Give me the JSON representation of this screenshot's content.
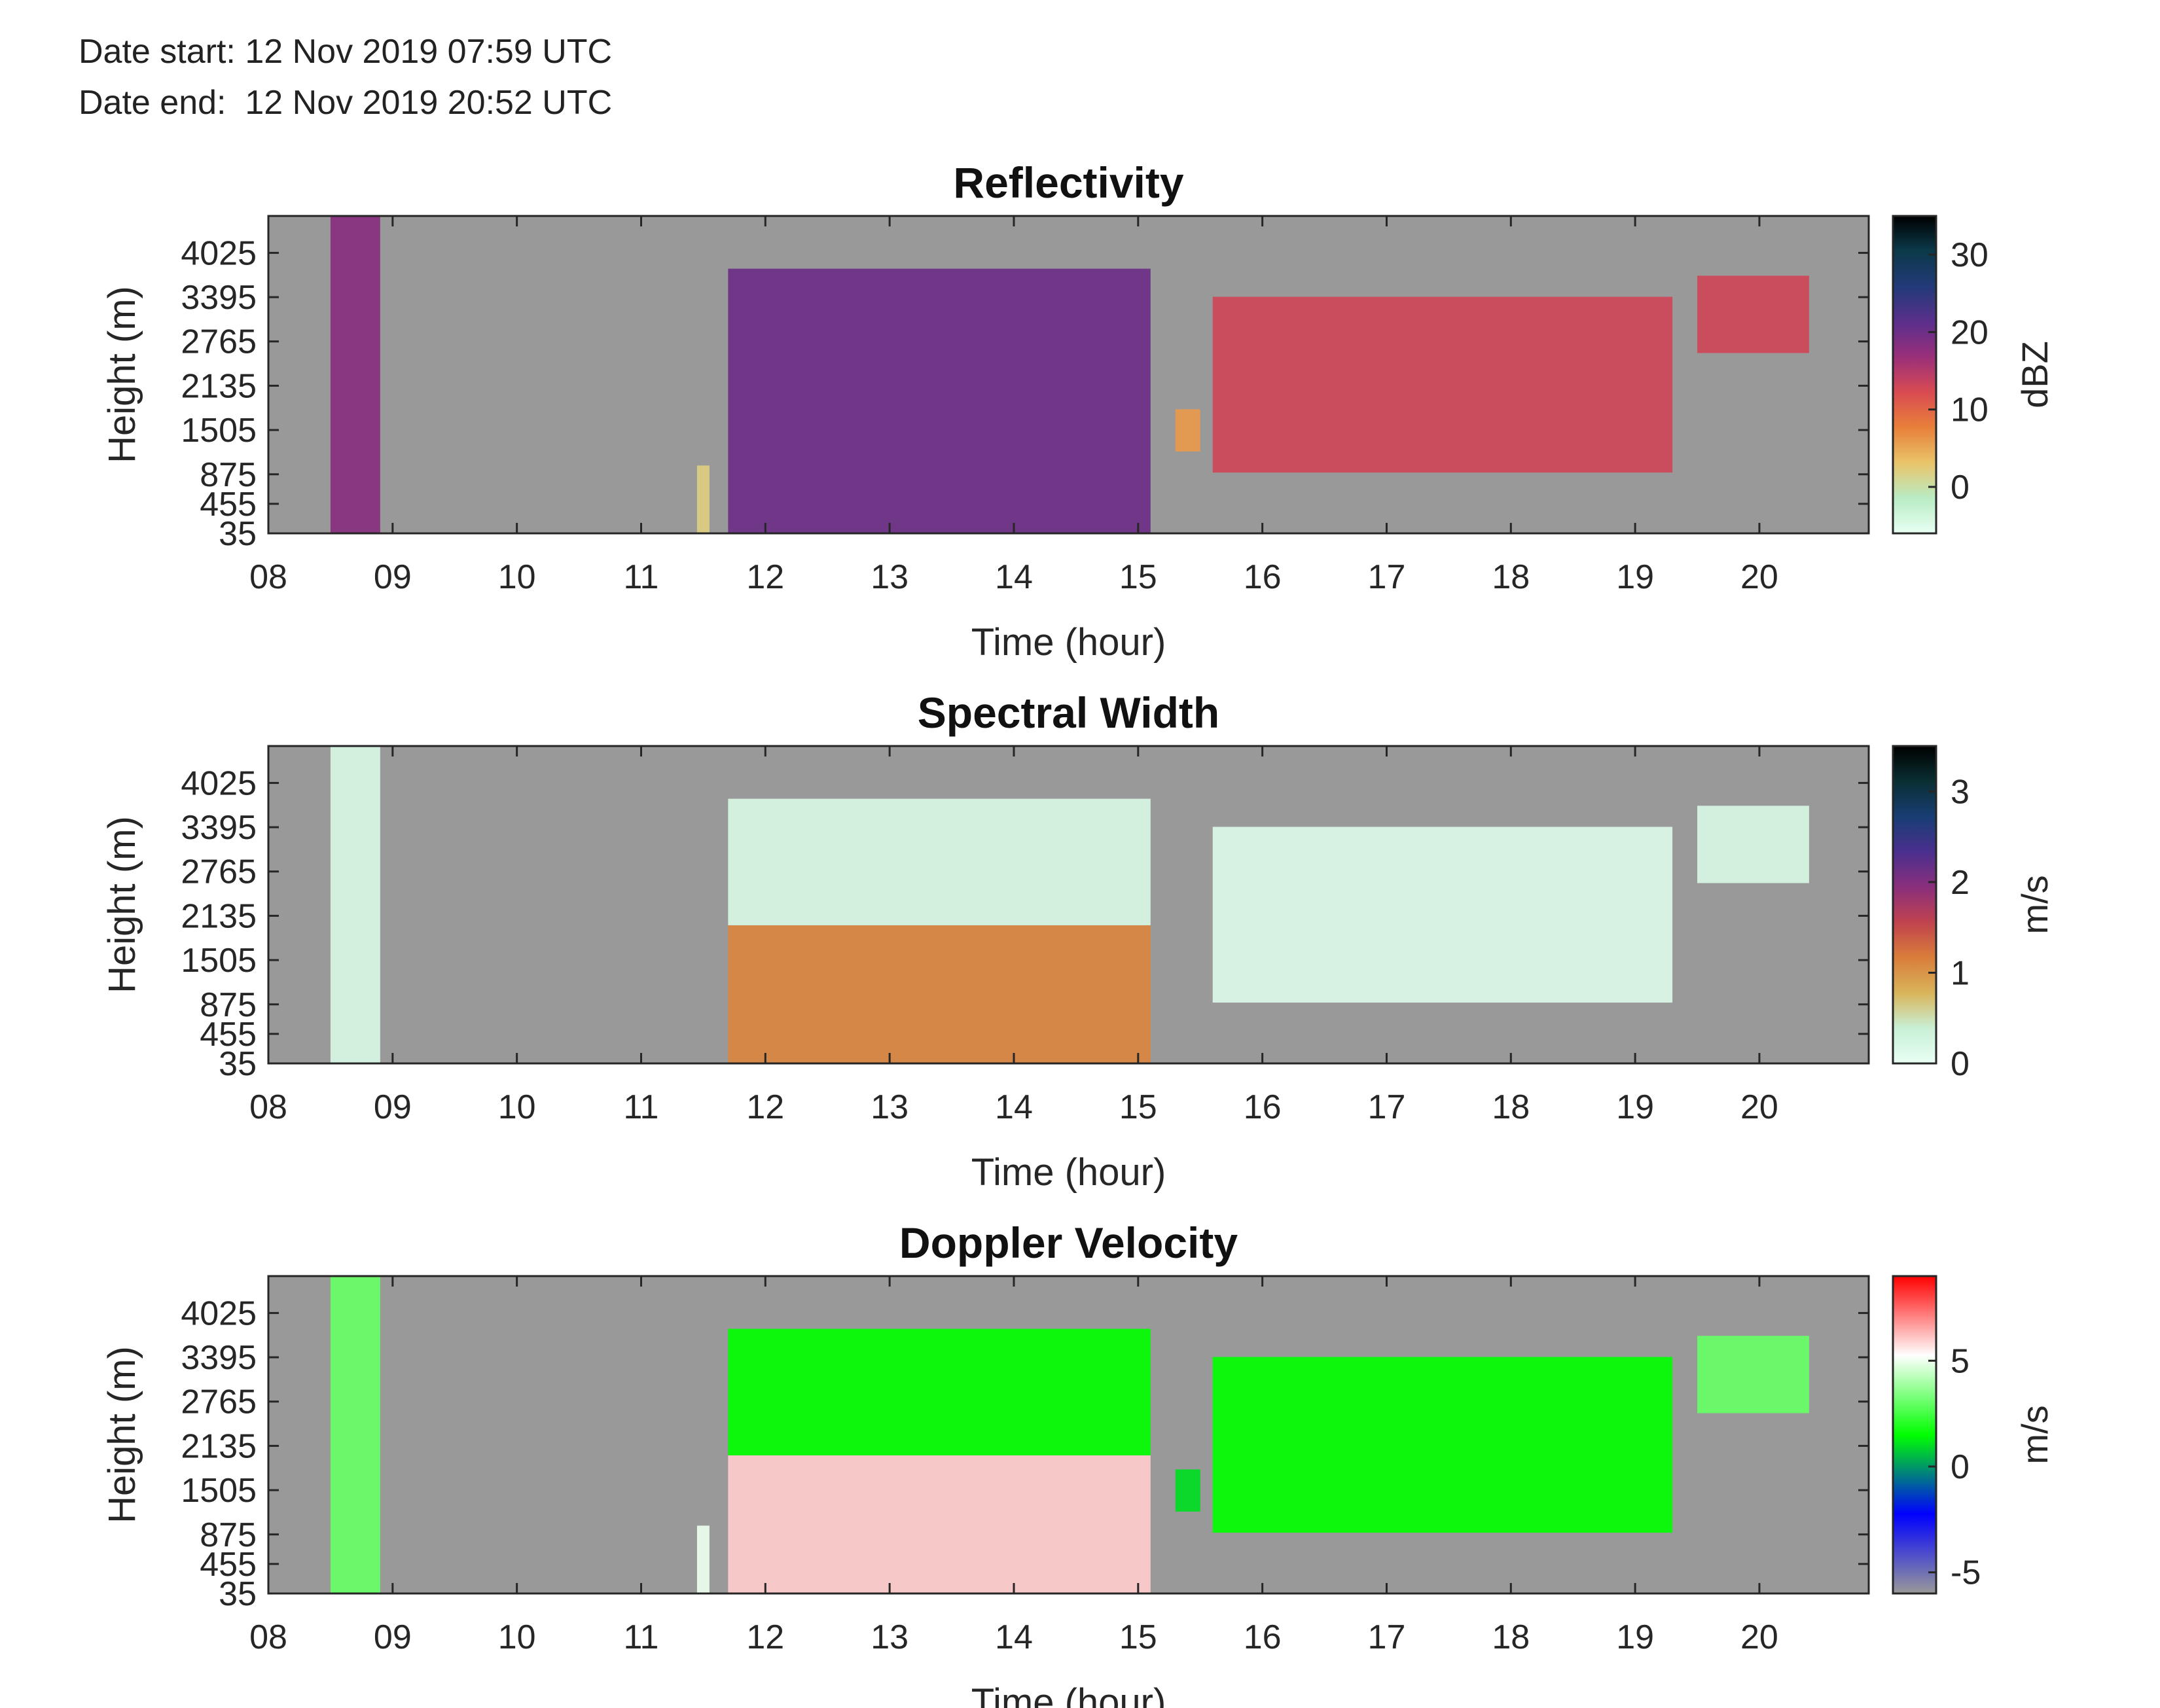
{
  "header": {
    "date_start": "Date start: 12 Nov 2019 07:59 UTC",
    "date_end": "Date end:  12 Nov 2019 20:52 UTC"
  },
  "colors": {
    "background": "#999999",
    "reflectivity_scale": [
      "#e8fff4",
      "#b9ecc4",
      "#e9c46a",
      "#e8803a",
      "#d94b52",
      "#9a2f7a",
      "#5a2f8c",
      "#223a78",
      "#0b3a4a",
      "#000000"
    ],
    "spectral_width_scale": [
      "#e8fff4",
      "#c9f0d6",
      "#d9b45a",
      "#d97d3a",
      "#c0434e",
      "#8a2f7c",
      "#4a2f8e",
      "#183e74",
      "#0a2f33",
      "#000000"
    ],
    "doppler_scale": [
      "#999999",
      "#0000ff",
      "#00ff00",
      "#ffffff",
      "#ff0000"
    ]
  },
  "chart_data": [
    {
      "type": "heatmap",
      "title": "Reflectivity",
      "xlabel": "Time (hour)",
      "ylabel": "Height (m)",
      "x_ticks": [
        "08",
        "09",
        "10",
        "11",
        "12",
        "13",
        "14",
        "15",
        "16",
        "17",
        "18",
        "19",
        "20"
      ],
      "y_ticks": [
        "35",
        "455",
        "875",
        "1505",
        "2135",
        "2765",
        "3395",
        "4025"
      ],
      "y_tick_values": [
        35,
        455,
        875,
        1505,
        2135,
        2765,
        3395,
        4025
      ],
      "xlim": [
        8.0,
        20.88
      ],
      "ylim": [
        35,
        4550
      ],
      "colorbar": {
        "label": "dBZ",
        "ticks": [
          "0",
          "10",
          "20",
          "30"
        ],
        "tick_values": [
          0,
          10,
          20,
          30
        ],
        "range": [
          -6,
          35
        ]
      },
      "echo_segments": [
        {
          "start": 8.5,
          "end": 8.9,
          "base": 35,
          "top": 4550,
          "value": 18
        },
        {
          "start": 11.45,
          "end": 11.55,
          "base": 35,
          "top": 1000,
          "value": 2
        },
        {
          "start": 11.7,
          "end": 15.1,
          "base": 35,
          "top": 3800,
          "value": 20
        },
        {
          "start": 15.3,
          "end": 15.5,
          "base": 1200,
          "top": 1800,
          "value": 6
        },
        {
          "start": 15.6,
          "end": 19.3,
          "base": 900,
          "top": 3400,
          "value": 13
        },
        {
          "start": 19.5,
          "end": 20.4,
          "base": 2600,
          "top": 3700,
          "value": 13
        }
      ]
    },
    {
      "type": "heatmap",
      "title": "Spectral Width",
      "xlabel": "Time (hour)",
      "ylabel": "Height (m)",
      "x_ticks": [
        "08",
        "09",
        "10",
        "11",
        "12",
        "13",
        "14",
        "15",
        "16",
        "17",
        "18",
        "19",
        "20"
      ],
      "y_ticks": [
        "35",
        "455",
        "875",
        "1505",
        "2135",
        "2765",
        "3395",
        "4025"
      ],
      "y_tick_values": [
        35,
        455,
        875,
        1505,
        2135,
        2765,
        3395,
        4025
      ],
      "xlim": [
        8.0,
        20.88
      ],
      "ylim": [
        35,
        4550
      ],
      "colorbar": {
        "label": "m/s",
        "ticks": [
          "0",
          "1",
          "2",
          "3"
        ],
        "tick_values": [
          0,
          1,
          2,
          3
        ],
        "range": [
          0,
          3.5
        ]
      },
      "echo_segments": [
        {
          "start": 8.5,
          "end": 8.9,
          "base": 35,
          "top": 4550,
          "value": 0.2
        },
        {
          "start": 11.7,
          "end": 15.1,
          "base": 35,
          "top": 2000,
          "value": 1.1
        },
        {
          "start": 11.7,
          "end": 15.1,
          "base": 2000,
          "top": 3800,
          "value": 0.2
        },
        {
          "start": 15.6,
          "end": 19.3,
          "base": 900,
          "top": 3400,
          "value": 0.15
        },
        {
          "start": 19.5,
          "end": 20.4,
          "base": 2600,
          "top": 3700,
          "value": 0.2
        }
      ]
    },
    {
      "type": "heatmap",
      "title": "Doppler Velocity",
      "xlabel": "Time (hour)",
      "ylabel": "Height (m)",
      "x_ticks": [
        "08",
        "09",
        "10",
        "11",
        "12",
        "13",
        "14",
        "15",
        "16",
        "17",
        "18",
        "19",
        "20"
      ],
      "y_ticks": [
        "35",
        "455",
        "875",
        "1505",
        "2135",
        "2765",
        "3395",
        "4025"
      ],
      "y_tick_values": [
        35,
        455,
        875,
        1505,
        2135,
        2765,
        3395,
        4025
      ],
      "xlim": [
        8.0,
        20.88
      ],
      "ylim": [
        35,
        4550
      ],
      "colorbar": {
        "label": "m/s",
        "ticks": [
          "-5",
          "0",
          "5"
        ],
        "tick_values": [
          -5,
          0,
          5
        ],
        "range": [
          -6,
          9
        ]
      },
      "echo_segments": [
        {
          "start": 8.5,
          "end": 8.9,
          "base": 35,
          "top": 4550,
          "value": 3
        },
        {
          "start": 11.45,
          "end": 11.55,
          "base": 35,
          "top": 1000,
          "value": 5
        },
        {
          "start": 11.7,
          "end": 15.1,
          "base": 35,
          "top": 2000,
          "value": 6
        },
        {
          "start": 11.7,
          "end": 15.1,
          "base": 2000,
          "top": 3800,
          "value": 1.5
        },
        {
          "start": 15.3,
          "end": 15.5,
          "base": 1200,
          "top": 1800,
          "value": 1
        },
        {
          "start": 15.6,
          "end": 19.3,
          "base": 900,
          "top": 3400,
          "value": 1.5
        },
        {
          "start": 19.5,
          "end": 20.4,
          "base": 2600,
          "top": 3700,
          "value": 3
        }
      ]
    }
  ]
}
